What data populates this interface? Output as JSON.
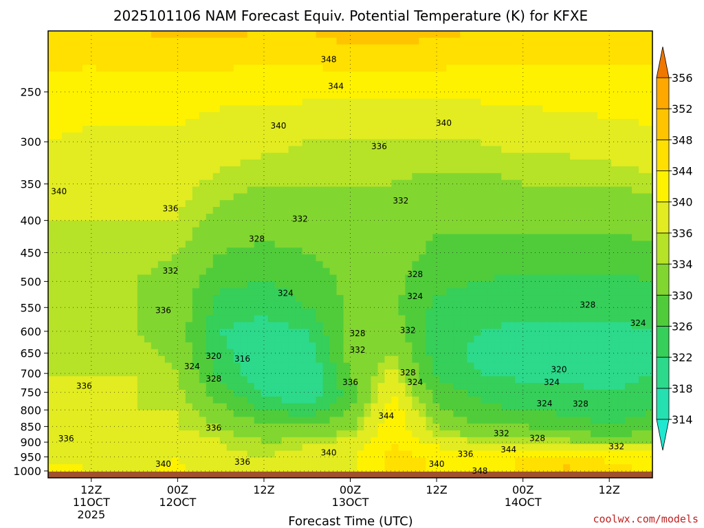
{
  "chart_data": {
    "type": "heatmap",
    "title": "2025101106 NAM Forecast Equiv. Potential Temperature (K) for KFXE",
    "xlabel": "Forecast Time (UTC)",
    "ylabel": "",
    "credit": "coolwx.com/models",
    "y_axis": {
      "scale": "log-pressure",
      "range": [
        1000,
        200
      ],
      "ticks": [
        250,
        300,
        350,
        400,
        450,
        500,
        550,
        600,
        650,
        700,
        750,
        800,
        850,
        900,
        950,
        1000
      ]
    },
    "x_axis": {
      "range_hours": [
        0,
        84
      ],
      "ticks": [
        {
          "hour": 6,
          "lines": [
            "12Z",
            "11OCT",
            "2025"
          ]
        },
        {
          "hour": 18,
          "lines": [
            "00Z",
            "12OCT"
          ]
        },
        {
          "hour": 30,
          "lines": [
            "12Z"
          ]
        },
        {
          "hour": 42,
          "lines": [
            "00Z",
            "13OCT"
          ]
        },
        {
          "hour": 54,
          "lines": [
            "12Z"
          ]
        },
        {
          "hour": 66,
          "lines": [
            "00Z",
            "14OCT"
          ]
        },
        {
          "hour": 78,
          "lines": [
            "12Z"
          ]
        }
      ]
    },
    "colorbar": {
      "levels": [
        314,
        318,
        322,
        326,
        330,
        334,
        336,
        340,
        344,
        348,
        352,
        356
      ],
      "colors": [
        "#25e0b0",
        "#2dd98a",
        "#35cf5a",
        "#50cc3a",
        "#82d630",
        "#b6e228",
        "#e2ec20",
        "#fff200",
        "#ffe000",
        "#ffc400",
        "#ffa800",
        "#ff8c00"
      ],
      "under_color": "#20e8d0",
      "over_color": "#f07800"
    },
    "ground_color": "#a0522d",
    "grid": "dotted",
    "x": [
      0,
      6,
      12,
      18,
      24,
      30,
      36,
      42,
      48,
      54,
      60,
      66,
      72,
      78,
      84
    ],
    "y": [
      1000,
      950,
      900,
      850,
      800,
      750,
      700,
      650,
      600,
      550,
      500,
      450,
      400,
      350,
      300,
      250,
      200
    ],
    "z": [
      [
        342,
        340,
        339,
        341,
        338,
        337,
        340,
        339,
        346,
        343,
        341,
        345,
        349,
        345,
        344
      ],
      [
        339,
        338,
        338,
        340,
        337,
        336,
        338,
        339,
        345,
        344,
        342,
        344,
        346,
        343,
        342
      ],
      [
        337,
        336,
        337,
        338,
        336,
        334,
        335,
        337,
        344,
        338,
        336,
        336,
        335,
        333,
        334
      ],
      [
        336,
        336,
        336,
        336,
        334,
        331,
        330,
        333,
        343,
        334,
        330,
        330,
        328,
        326,
        328
      ],
      [
        336,
        336,
        336,
        336,
        331,
        326,
        324,
        330,
        342,
        331,
        327,
        326,
        325,
        324,
        326
      ],
      [
        336,
        337,
        336,
        335,
        328,
        321,
        318,
        328,
        340,
        328,
        325,
        323,
        323,
        322,
        324
      ],
      [
        336,
        336,
        336,
        334,
        325,
        319,
        318,
        330,
        337,
        325,
        322,
        321,
        321,
        320,
        322
      ],
      [
        336,
        335,
        335,
        333,
        323,
        319,
        319,
        332,
        334,
        324,
        321,
        320,
        320,
        320,
        321
      ],
      [
        335,
        334,
        334,
        332,
        322,
        320,
        322,
        332,
        332,
        324,
        322,
        321,
        321,
        321,
        322
      ],
      [
        335,
        334,
        334,
        333,
        324,
        323,
        326,
        331,
        331,
        325,
        324,
        323,
        323,
        323,
        324
      ],
      [
        335,
        334,
        334,
        333,
        327,
        326,
        328,
        331,
        331,
        327,
        326,
        325,
        325,
        325,
        326
      ],
      [
        335,
        335,
        335,
        334,
        330,
        329,
        330,
        332,
        332,
        329,
        328,
        328,
        328,
        328,
        329
      ],
      [
        336,
        336,
        336,
        336,
        333,
        332,
        332,
        333,
        333,
        331,
        331,
        331,
        331,
        331,
        332
      ],
      [
        338,
        337,
        337,
        337,
        335,
        334,
        334,
        334,
        334,
        333,
        333,
        334,
        334,
        334,
        335
      ],
      [
        340,
        339,
        339,
        339,
        338,
        337,
        336,
        336,
        336,
        336,
        336,
        337,
        337,
        338,
        339
      ],
      [
        343,
        342,
        342,
        342,
        341,
        341,
        341,
        341,
        341,
        341,
        341,
        341,
        342,
        342,
        342
      ],
      [
        346,
        347,
        348,
        349,
        349,
        348,
        348,
        350,
        350,
        349,
        348,
        347,
        346,
        346,
        347
      ]
    ],
    "contour_labels": [
      {
        "v": 348,
        "hour": 39,
        "p": 222
      },
      {
        "v": 344,
        "hour": 40,
        "p": 245
      },
      {
        "v": 340,
        "hour": 32,
        "p": 283
      },
      {
        "v": 340,
        "hour": 55,
        "p": 280
      },
      {
        "v": 336,
        "hour": 46,
        "p": 305
      },
      {
        "v": 340,
        "hour": 1.5,
        "p": 360
      },
      {
        "v": 336,
        "hour": 17,
        "p": 383
      },
      {
        "v": 332,
        "hour": 35,
        "p": 398
      },
      {
        "v": 332,
        "hour": 49,
        "p": 372
      },
      {
        "v": 328,
        "hour": 29,
        "p": 428
      },
      {
        "v": 332,
        "hour": 17,
        "p": 481
      },
      {
        "v": 324,
        "hour": 33,
        "p": 522
      },
      {
        "v": 328,
        "hour": 51,
        "p": 487
      },
      {
        "v": 324,
        "hour": 51,
        "p": 528
      },
      {
        "v": 328,
        "hour": 75,
        "p": 545
      },
      {
        "v": 324,
        "hour": 82,
        "p": 582
      },
      {
        "v": 336,
        "hour": 16,
        "p": 556
      },
      {
        "v": 328,
        "hour": 43,
        "p": 605
      },
      {
        "v": 332,
        "hour": 43,
        "p": 642
      },
      {
        "v": 332,
        "hour": 50,
        "p": 598
      },
      {
        "v": 320,
        "hour": 23,
        "p": 657
      },
      {
        "v": 316,
        "hour": 27,
        "p": 664
      },
      {
        "v": 324,
        "hour": 20,
        "p": 682
      },
      {
        "v": 328,
        "hour": 23,
        "p": 714
      },
      {
        "v": 336,
        "hour": 42,
        "p": 723
      },
      {
        "v": 328,
        "hour": 50,
        "p": 698
      },
      {
        "v": 324,
        "hour": 51,
        "p": 723
      },
      {
        "v": 320,
        "hour": 71,
        "p": 690
      },
      {
        "v": 324,
        "hour": 70,
        "p": 723
      },
      {
        "v": 324,
        "hour": 69,
        "p": 782
      },
      {
        "v": 328,
        "hour": 74,
        "p": 783
      },
      {
        "v": 336,
        "hour": 5,
        "p": 733
      },
      {
        "v": 344,
        "hour": 47,
        "p": 818
      },
      {
        "v": 332,
        "hour": 63,
        "p": 872
      },
      {
        "v": 328,
        "hour": 68,
        "p": 887
      },
      {
        "v": 344,
        "hour": 64,
        "p": 925
      },
      {
        "v": 332,
        "hour": 79,
        "p": 915
      },
      {
        "v": 336,
        "hour": 23,
        "p": 855
      },
      {
        "v": 336,
        "hour": 2.5,
        "p": 888
      },
      {
        "v": 340,
        "hour": 39,
        "p": 936
      },
      {
        "v": 336,
        "hour": 58,
        "p": 940
      },
      {
        "v": 336,
        "hour": 27,
        "p": 968
      },
      {
        "v": 340,
        "hour": 16,
        "p": 975
      },
      {
        "v": 340,
        "hour": 54,
        "p": 975
      },
      {
        "v": 348,
        "hour": 60,
        "p": 1000
      }
    ]
  }
}
